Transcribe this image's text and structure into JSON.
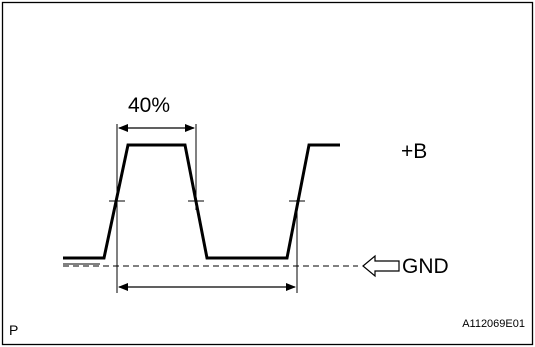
{
  "labels": {
    "duty_cycle": "40%",
    "high_level": "+B",
    "ground": "GND",
    "corner": "P",
    "figure_code": "A112069E01"
  },
  "colors": {
    "line": "#000000",
    "background": "#ffffff"
  }
}
